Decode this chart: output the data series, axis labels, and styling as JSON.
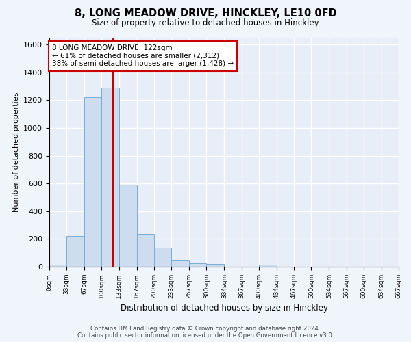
{
  "title": "8, LONG MEADOW DRIVE, HINCKLEY, LE10 0FD",
  "subtitle": "Size of property relative to detached houses in Hinckley",
  "xlabel": "Distribution of detached houses by size in Hinckley",
  "ylabel": "Number of detached properties",
  "bar_color": "#cddcef",
  "bar_edge_color": "#7aadd4",
  "background_color": "#e8eef8",
  "fig_background_color": "#f0f4fb",
  "grid_color": "#ffffff",
  "bin_edges": [
    0,
    33,
    67,
    100,
    133,
    167,
    200,
    233,
    267,
    300,
    334,
    367,
    400,
    434,
    467,
    500,
    534,
    567,
    600,
    634,
    667
  ],
  "bar_heights": [
    15,
    220,
    1220,
    1290,
    590,
    235,
    140,
    50,
    25,
    20,
    0,
    0,
    15,
    0,
    0,
    0,
    0,
    0,
    0,
    0
  ],
  "tick_labels": [
    "0sqm",
    "33sqm",
    "67sqm",
    "100sqm",
    "133sqm",
    "167sqm",
    "200sqm",
    "233sqm",
    "267sqm",
    "300sqm",
    "334sqm",
    "367sqm",
    "400sqm",
    "434sqm",
    "467sqm",
    "500sqm",
    "534sqm",
    "567sqm",
    "600sqm",
    "634sqm",
    "667sqm"
  ],
  "ylim": [
    0,
    1650
  ],
  "yticks": [
    0,
    200,
    400,
    600,
    800,
    1000,
    1200,
    1400,
    1600
  ],
  "vline_x": 122,
  "annotation_text1": "8 LONG MEADOW DRIVE: 122sqm",
  "annotation_text2": "← 61% of detached houses are smaller (2,312)",
  "annotation_text3": "38% of semi-detached houses are larger (1,428) →",
  "annotation_box_color": "#ffffff",
  "annotation_box_edge": "#cc0000",
  "vline_color": "#cc0000",
  "footer1": "Contains HM Land Registry data © Crown copyright and database right 2024.",
  "footer2": "Contains public sector information licensed under the Open Government Licence v3.0."
}
